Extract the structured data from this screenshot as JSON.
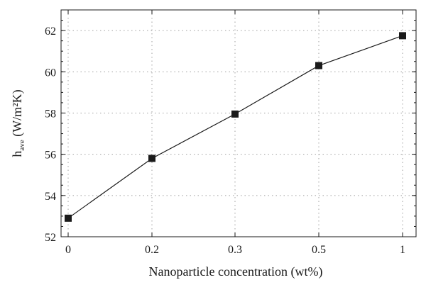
{
  "chart_data": {
    "type": "line",
    "x": [
      "0",
      "0.2",
      "0.3",
      "0.5",
      "1"
    ],
    "xlabel": "Nanoparticle concentration (wt%)",
    "ylabel_main": "h",
    "ylabel_sub": "ave",
    "ylabel_unit": " (W/m²K)",
    "ylim": [
      52,
      63
    ],
    "yticks": [
      52,
      54,
      56,
      58,
      60,
      62
    ],
    "grid": true,
    "marker": "square",
    "series": [
      {
        "values": [
          52.9,
          55.8,
          57.95,
          60.3,
          61.75
        ]
      }
    ],
    "colors": {
      "line": "#1a1a1a",
      "grid": "#a0a0a0"
    }
  }
}
